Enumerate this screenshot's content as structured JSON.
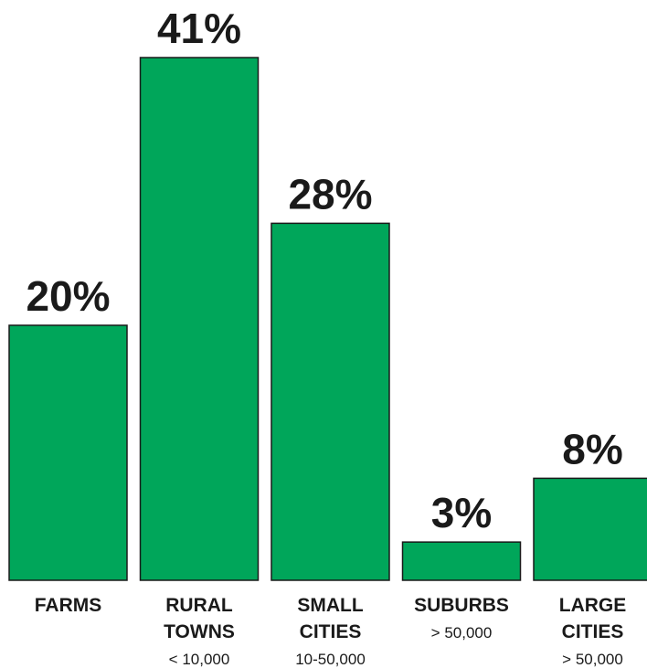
{
  "chart_data": {
    "type": "bar",
    "title": "",
    "xlabel": "",
    "ylabel": "",
    "ylim": [
      0,
      41
    ],
    "grid": false,
    "bar_color": "#00a65a",
    "categories": [
      {
        "lines": [
          "FARMS"
        ],
        "sub": ""
      },
      {
        "lines": [
          "RURAL",
          "TOWNS"
        ],
        "sub": "< 10,000"
      },
      {
        "lines": [
          "SMALL",
          "CITIES"
        ],
        "sub": "10-50,000"
      },
      {
        "lines": [
          "SUBURBS"
        ],
        "sub": "> 50,000"
      },
      {
        "lines": [
          "LARGE",
          "CITIES"
        ],
        "sub": "> 50,000"
      }
    ],
    "values": [
      20,
      41,
      28,
      3,
      8
    ],
    "value_labels": [
      "20%",
      "41%",
      "28%",
      "3%",
      "8%"
    ]
  }
}
